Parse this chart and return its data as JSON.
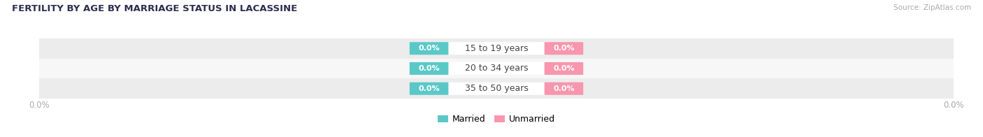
{
  "title": "FERTILITY BY AGE BY MARRIAGE STATUS IN LACASSINE",
  "source": "Source: ZipAtlas.com",
  "age_groups": [
    "15 to 19 years",
    "20 to 34 years",
    "35 to 50 years"
  ],
  "married_values": [
    0.0,
    0.0,
    0.0
  ],
  "unmarried_values": [
    0.0,
    0.0,
    0.0
  ],
  "married_color": "#5bc8c8",
  "unmarried_color": "#f896ae",
  "row_colors_odd": "#ececec",
  "row_colors_even": "#f7f7f7",
  "bg_color": "#ffffff",
  "title_color": "#2d2d4e",
  "source_color": "#aaaaaa",
  "value_label_color": "#ffffff",
  "center_label_color": "#444444",
  "axis_tick_color": "#aaaaaa",
  "figsize": [
    14.06,
    1.96
  ],
  "dpi": 100,
  "xlim_left": -1.0,
  "xlim_right": 1.0
}
